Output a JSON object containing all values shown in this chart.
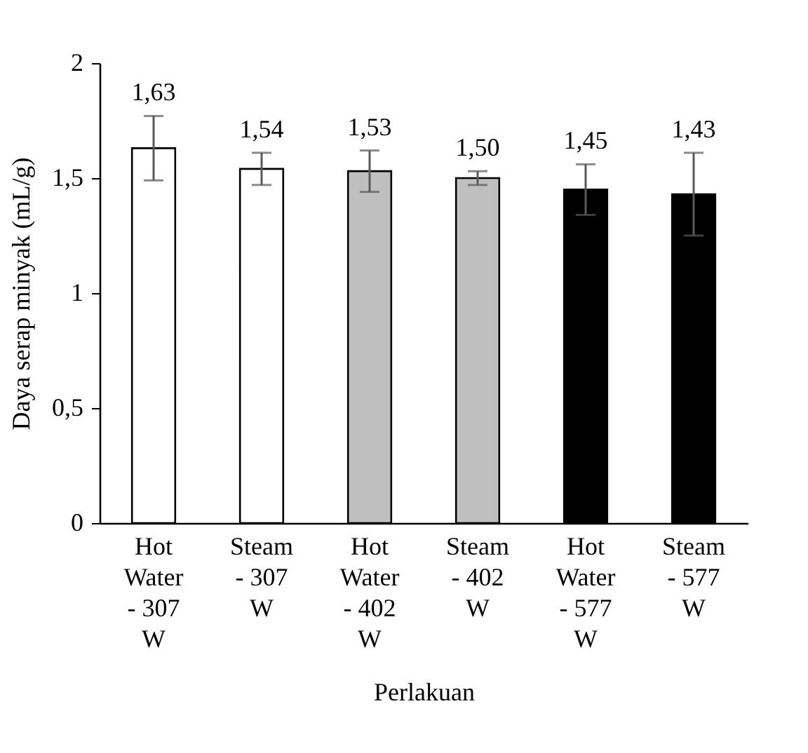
{
  "chart_data": {
    "type": "bar",
    "xlabel": "Perlakuan",
    "ylabel": "Daya serap  minyak (mL/g)",
    "categories": [
      "Hot Water - 307 W",
      "Steam - 307 W",
      "Hot Water - 402 W",
      "Steam - 402 W",
      "Hot Water - 577 W",
      "Steam - 577 W"
    ],
    "values": [
      1.63,
      1.54,
      1.53,
      1.5,
      1.45,
      1.43
    ],
    "colors": [
      "#ffffff",
      "#ffffff",
      "#bfbfbf",
      "#bfbfbf",
      "#000000",
      "#000000"
    ],
    "errors": [
      0.14,
      0.07,
      0.09,
      0.03,
      0.11,
      0.18
    ],
    "value_labels": [
      "1,63",
      "1,54",
      "1,53",
      "1,50",
      "1,45",
      "1,43"
    ],
    "ylim": [
      0,
      2
    ],
    "yticks": [
      0,
      {
        "value": 0.5,
        "label": "0,5"
      },
      1,
      {
        "value": 1.5,
        "label": "1,5"
      },
      2
    ],
    "grid": false
  }
}
